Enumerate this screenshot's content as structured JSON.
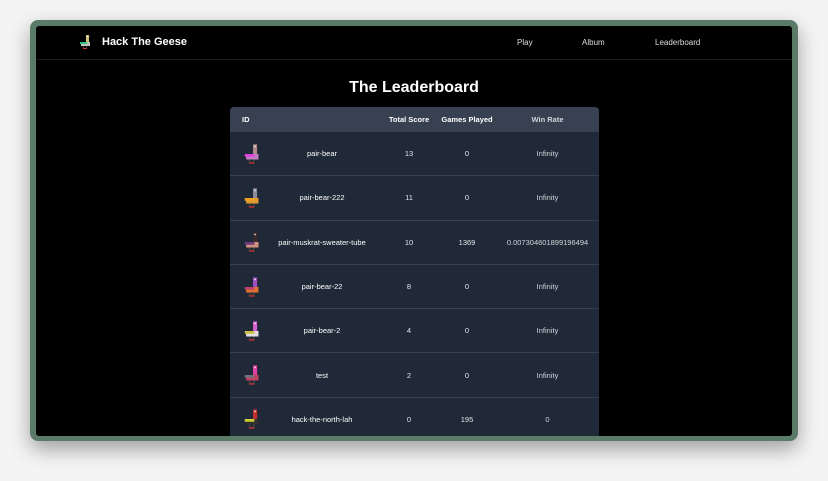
{
  "nav": {
    "brand": "Hack The Geese",
    "links": [
      "Play",
      "Album",
      "Leaderboard"
    ]
  },
  "title": "The Leaderboard",
  "table": {
    "headers": [
      "ID",
      "Total Score",
      "Games Played",
      "Win Rate"
    ],
    "rows": [
      {
        "id": "pair-bear",
        "score": "13",
        "games": "0",
        "rate": "Infinity",
        "goose": {
          "neck": "#b08a8a",
          "body": "#c27fc0",
          "wing": "#e040e0"
        }
      },
      {
        "id": "pair-bear-222",
        "score": "11",
        "games": "0",
        "rate": "Infinity",
        "goose": {
          "neck": "#8a8a9a",
          "body": "#e09a30",
          "wing": "#f0a020"
        }
      },
      {
        "id": "pair-muskrat-sweater-tube",
        "score": "10",
        "games": "1369",
        "rate": "0.007304601899196494",
        "goose": {
          "neck": "#3a2a2a",
          "body": "#d09080",
          "wing": "#6a3a7a"
        }
      },
      {
        "id": "pair-bear-22",
        "score": "8",
        "games": "0",
        "rate": "Infinity",
        "goose": {
          "neck": "#a050c0",
          "body": "#e07030",
          "wing": "#c04070"
        }
      },
      {
        "id": "pair-bear-2",
        "score": "4",
        "games": "0",
        "rate": "Infinity",
        "goose": {
          "neck": "#d060d0",
          "body": "#e0e0e0",
          "wing": "#d0c040"
        }
      },
      {
        "id": "test",
        "score": "2",
        "games": "0",
        "rate": "Infinity",
        "goose": {
          "neck": "#e040a0",
          "body": "#c04060",
          "wing": "#707080"
        }
      },
      {
        "id": "hack-the-north-lah",
        "score": "0",
        "games": "195",
        "rate": "0",
        "goose": {
          "neck": "#c03030",
          "body": "#303030",
          "wing": "#d0d030"
        }
      }
    ]
  },
  "brand_goose": {
    "neck": "#d0c070",
    "body": "#c0c0c0",
    "wing": "#30c080"
  }
}
